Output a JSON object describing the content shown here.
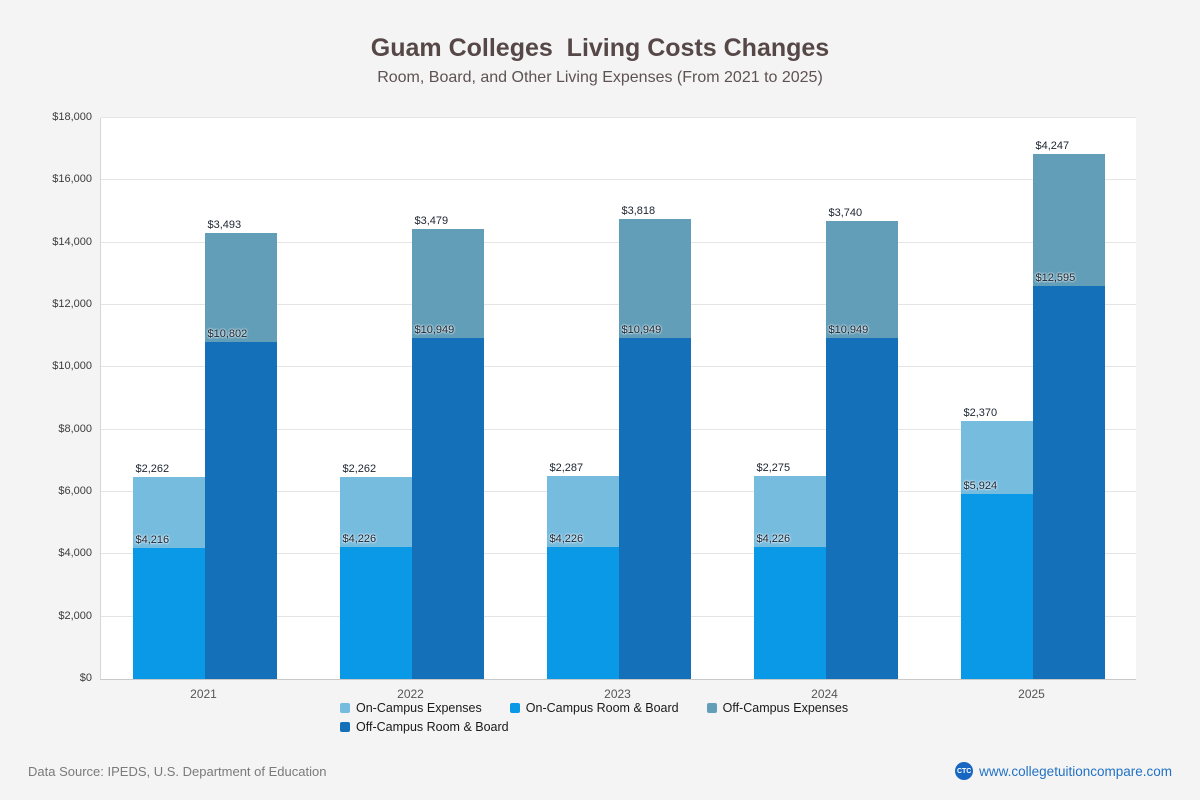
{
  "title": "Guam Colleges  Living Costs Changes",
  "subtitle": "Room, Board, and Other Living Expenses (From 2021 to 2025)",
  "footer": {
    "source": "Data Source: IPEDS, U.S. Department of Education",
    "site": "www.collegetuitioncompare.com",
    "logo": "CTC"
  },
  "chart_data": {
    "type": "bar",
    "subtype": "grouped-stacked",
    "title": "Guam Colleges  Living Costs Changes",
    "subtitle": "Room, Board, and Other Living Expenses (From 2021 to 2025)",
    "categories": [
      "2021",
      "2022",
      "2023",
      "2024",
      "2025"
    ],
    "ylim": [
      0,
      18000
    ],
    "ytick_step": 2000,
    "yticks": [
      "$0",
      "$2,000",
      "$4,000",
      "$6,000",
      "$8,000",
      "$10,000",
      "$12,000",
      "$14,000",
      "$16,000",
      "$18,000"
    ],
    "grid": true,
    "legend_position": "bottom",
    "series": [
      {
        "name": "On-Campus Room & Board",
        "stack": "on-campus",
        "color": "#0a99e6",
        "values": [
          4216,
          4226,
          4226,
          4226,
          5924
        ]
      },
      {
        "name": "On-Campus Expenses",
        "stack": "on-campus",
        "color": "#76bcdf",
        "values": [
          2262,
          2262,
          2287,
          2275,
          2370
        ]
      },
      {
        "name": "Off-Campus Room & Board",
        "stack": "off-campus",
        "color": "#1471b9",
        "values": [
          10802,
          10949,
          10949,
          10949,
          12595
        ]
      },
      {
        "name": "Off-Campus Expenses",
        "stack": "off-campus",
        "color": "#629eb8",
        "values": [
          3493,
          3479,
          3818,
          3740,
          4247
        ]
      }
    ],
    "legend": [
      {
        "label": "On-Campus Expenses",
        "color": "#76bcdf"
      },
      {
        "label": "On-Campus Room & Board",
        "color": "#0a99e6"
      },
      {
        "label": "Off-Campus Expenses",
        "color": "#629eb8"
      },
      {
        "label": "Off-Campus Room & Board",
        "color": "#1471b9"
      }
    ]
  }
}
